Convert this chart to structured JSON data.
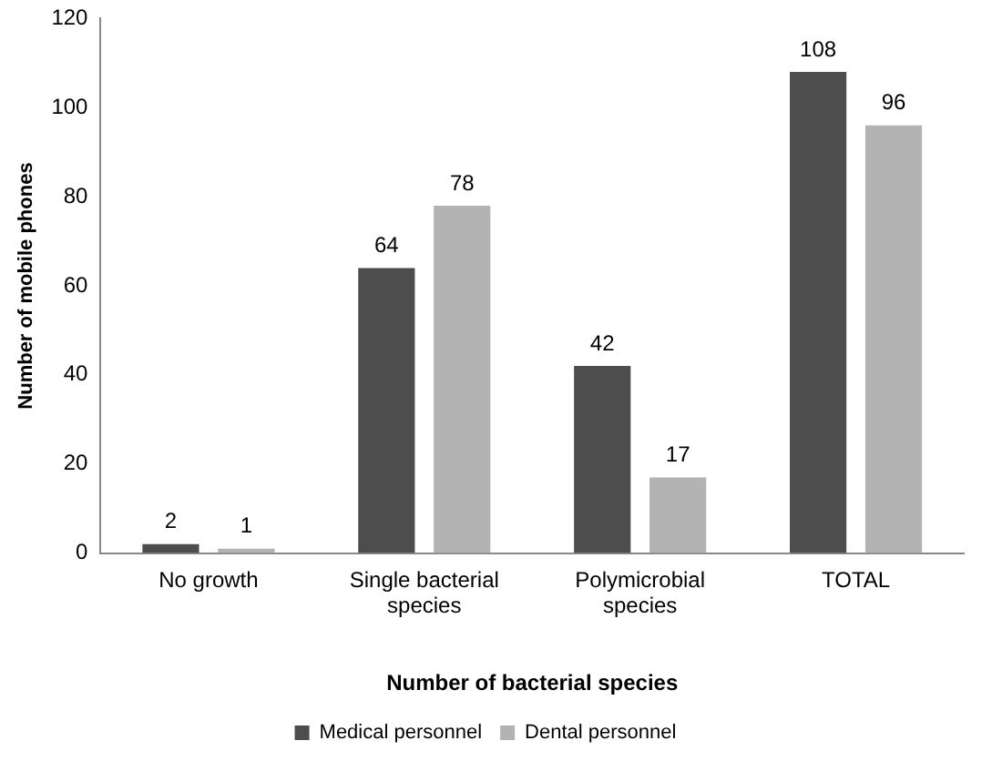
{
  "chart_data": {
    "type": "bar",
    "xlabel": "Number of bacterial species",
    "ylabel": "Number of mobile phones",
    "categories": [
      "No growth",
      "Single bacterial species",
      "Polymicrobial species",
      "TOTAL"
    ],
    "series": [
      {
        "name": "Medical personnel",
        "color": "#4d4d4d",
        "values": [
          2,
          64,
          42,
          108
        ]
      },
      {
        "name": "Dental personnel",
        "color": "#b3b3b3",
        "values": [
          1,
          78,
          17,
          96
        ]
      }
    ],
    "ylim": [
      0,
      120
    ],
    "yticks": [
      0,
      20,
      40,
      60,
      80,
      100,
      120
    ],
    "grid": false,
    "legend": "bottom",
    "data_labels": true
  }
}
